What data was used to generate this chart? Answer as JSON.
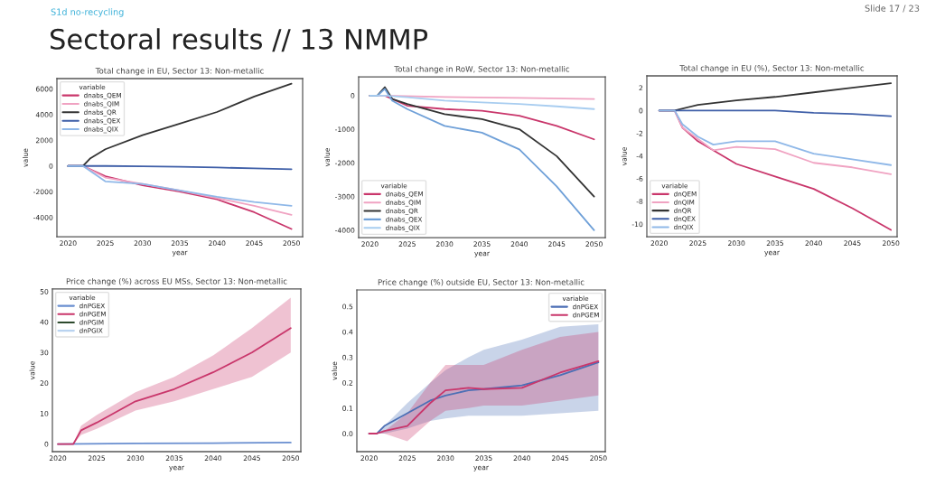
{
  "chart_data": [
    {
      "type": "line",
      "title": "Total change in EU, Sector 13: Non-metallic",
      "xlabel": "year",
      "ylabel": "value",
      "legend_title": "variable",
      "legend": "top left",
      "grid": false,
      "annotations": [
        "S1d no-recycling",
        "Sectoral results // 13 NMMP",
        "Slide 17 / 23"
      ],
      "xlim": [
        2018.5,
        2051.5
      ],
      "xticks": [
        2020,
        2025,
        2030,
        2035,
        2040,
        2045,
        2050
      ],
      "ylim": [
        -5500,
        6800
      ],
      "yticks": [
        -4000,
        -2000,
        0,
        2000,
        4000,
        6000
      ],
      "series": [
        {
          "name": "dnabs_QEM",
          "color": "#c9366b",
          "x": [
            2020,
            2022,
            2025,
            2030,
            2035,
            2040,
            2045,
            2050
          ],
          "values": [
            0,
            0,
            -800,
            -1500,
            -2000,
            -2600,
            -3600,
            -4900
          ]
        },
        {
          "name": "dnabs_QIM",
          "color": "#f0a3c2",
          "x": [
            2020,
            2022,
            2025,
            2030,
            2035,
            2040,
            2045,
            2050
          ],
          "values": [
            0,
            0,
            -900,
            -1400,
            -1900,
            -2500,
            -3100,
            -3800
          ]
        },
        {
          "name": "dnabs_QR",
          "color": "#333333",
          "x": [
            2020,
            2022,
            2023,
            2025,
            2030,
            2035,
            2040,
            2045,
            2050
          ],
          "values": [
            0,
            0,
            600,
            1300,
            2400,
            3300,
            4200,
            5400,
            6400
          ]
        },
        {
          "name": "dnabs_QEX",
          "color": "#3f5fa8",
          "x": [
            2020,
            2025,
            2030,
            2035,
            2040,
            2045,
            2050
          ],
          "values": [
            0,
            0,
            -20,
            -60,
            -120,
            -180,
            -250
          ]
        },
        {
          "name": "dnabs_QIX",
          "color": "#8fb8e8",
          "x": [
            2020,
            2022,
            2025,
            2030,
            2035,
            2040,
            2045,
            2050
          ],
          "values": [
            0,
            0,
            -1200,
            -1400,
            -1900,
            -2400,
            -2800,
            -3100
          ]
        }
      ]
    },
    {
      "type": "line",
      "title": "Total change in RoW, Sector 13: Non-metallic",
      "xlabel": "year",
      "ylabel": "value",
      "legend_title": "variable",
      "legend": "bottom left",
      "grid": false,
      "xlim": [
        2018.5,
        2051.5
      ],
      "xticks": [
        2020,
        2025,
        2030,
        2035,
        2040,
        2045,
        2050
      ],
      "ylim": [
        -4220,
        560
      ],
      "yticks": [
        -4000,
        -3000,
        -2000,
        -1000,
        0
      ],
      "series": [
        {
          "name": "dnabs_QEM",
          "color": "#c9366b",
          "x": [
            2020,
            2022,
            2025,
            2030,
            2035,
            2040,
            2045,
            2050
          ],
          "values": [
            0,
            0,
            -300,
            -400,
            -450,
            -600,
            -900,
            -1300
          ]
        },
        {
          "name": "dnabs_QIM",
          "color": "#f0a3c2",
          "x": [
            2020,
            2022,
            2030,
            2040,
            2050
          ],
          "values": [
            0,
            0,
            -40,
            -70,
            -100
          ]
        },
        {
          "name": "dnabs_QR",
          "color": "#333333",
          "x": [
            2020,
            2021,
            2022,
            2023,
            2025,
            2030,
            2035,
            2040,
            2045,
            2050
          ],
          "values": [
            0,
            0,
            250,
            -100,
            -250,
            -550,
            -700,
            -1000,
            -1800,
            -3000
          ]
        },
        {
          "name": "dnabs_QEX",
          "color": "#6fa0d8",
          "x": [
            2020,
            2021,
            2022,
            2023,
            2025,
            2030,
            2035,
            2040,
            2045,
            2050
          ],
          "values": [
            0,
            0,
            200,
            -150,
            -400,
            -900,
            -1100,
            -1600,
            -2700,
            -4000
          ]
        },
        {
          "name": "dnabs_QIX",
          "color": "#a8cdf0",
          "x": [
            2020,
            2022,
            2025,
            2030,
            2035,
            2040,
            2045,
            2050
          ],
          "values": [
            0,
            0,
            -50,
            -150,
            -200,
            -250,
            -320,
            -400
          ]
        }
      ]
    },
    {
      "type": "line",
      "title": "Total change in EU (%), Sector 13: Non-metallic",
      "xlabel": "year",
      "ylabel": "value",
      "legend_title": "variable",
      "legend": "bottom left",
      "grid": false,
      "xlim": [
        2018.4,
        2050.8
      ],
      "xticks": [
        2020,
        2025,
        2030,
        2035,
        2040,
        2045,
        2050
      ],
      "ylim": [
        -11.1,
        3.05
      ],
      "yticks": [
        -10,
        -8,
        -6,
        -4,
        -2,
        0,
        2
      ],
      "series": [
        {
          "name": "dnQEM",
          "color": "#c9366b",
          "x": [
            2020,
            2022,
            2023,
            2025,
            2030,
            2035,
            2040,
            2045,
            2050
          ],
          "values": [
            0,
            0,
            -1.5,
            -2.7,
            -4.7,
            -5.8,
            -6.9,
            -8.6,
            -10.5
          ]
        },
        {
          "name": "dnQIM",
          "color": "#f0a3c2",
          "x": [
            2020,
            2022,
            2023,
            2025,
            2027,
            2030,
            2035,
            2040,
            2045,
            2050
          ],
          "values": [
            0,
            0,
            -1.5,
            -2.5,
            -3.5,
            -3.2,
            -3.4,
            -4.6,
            -5.0,
            -5.6
          ]
        },
        {
          "name": "dnQR",
          "color": "#333333",
          "x": [
            2020,
            2022,
            2025,
            2030,
            2035,
            2040,
            2045,
            2050
          ],
          "values": [
            0,
            0,
            0.5,
            0.9,
            1.2,
            1.6,
            2.0,
            2.4
          ]
        },
        {
          "name": "dnQEX",
          "color": "#3f5fa8",
          "x": [
            2020,
            2035,
            2040,
            2045,
            2050
          ],
          "values": [
            0,
            0,
            -0.2,
            -0.3,
            -0.5
          ]
        },
        {
          "name": "dnQIX",
          "color": "#8fb8e8",
          "x": [
            2020,
            2022,
            2023,
            2025,
            2027,
            2030,
            2035,
            2040,
            2045,
            2050
          ],
          "values": [
            0,
            0,
            -1.2,
            -2.3,
            -3.0,
            -2.7,
            -2.7,
            -3.8,
            -4.3,
            -4.8
          ]
        }
      ]
    },
    {
      "type": "line",
      "title": "Price change (%) across EU MSs, Sector 13: Non-metallic",
      "xlabel": "year",
      "ylabel": "value",
      "legend_title": "variable",
      "legend": "top left",
      "grid": false,
      "xlim": [
        2019.3,
        2051.3
      ],
      "xticks": [
        2020,
        2025,
        2030,
        2035,
        2040,
        2045,
        2050
      ],
      "ylim": [
        -2.5,
        50.8
      ],
      "yticks": [
        0,
        10,
        20,
        30,
        40,
        50
      ],
      "series": [
        {
          "name": "dnPGEX",
          "color": "#6a8fd0",
          "x": [
            2020,
            2030,
            2040,
            2050
          ],
          "values": [
            0,
            0.2,
            0.3,
            0.5
          ]
        },
        {
          "name": "dnPGEM",
          "color": "#c9366b",
          "x": [
            2020,
            2022,
            2023,
            2025,
            2030,
            2035,
            2040,
            2045,
            2050
          ],
          "values": [
            0,
            0,
            4.5,
            7,
            14,
            18,
            23.5,
            30,
            38
          ],
          "lower": [
            0,
            0,
            3,
            5,
            11,
            14,
            18,
            22,
            30
          ],
          "upper": [
            0,
            0,
            6,
            9.5,
            17,
            22,
            29,
            38,
            48
          ]
        },
        {
          "name": "dnPGIM",
          "color": "#2d4a2d"
        },
        {
          "name": "dnPGIX",
          "color": "#b9d3f0"
        }
      ]
    },
    {
      "type": "line",
      "title": "Price change (%) outside EU, Sector 13: Non-metallic",
      "xlabel": "year",
      "ylabel": "value",
      "legend_title": "variable",
      "legend": "top right",
      "grid": false,
      "xlim": [
        2018.4,
        2050.9
      ],
      "xticks": [
        2020,
        2025,
        2030,
        2035,
        2040,
        2045,
        2050
      ],
      "ylim": [
        -0.071,
        0.565
      ],
      "yticks": [
        {
          "value": 0.0,
          "label": "0.0"
        },
        0.1,
        0.2,
        0.3,
        0.4,
        0.5
      ],
      "series": [
        {
          "name": "dnPGEX",
          "color": "#4c6fb5",
          "x": [
            2020,
            2021,
            2022,
            2025,
            2028,
            2030,
            2033,
            2035,
            2040,
            2045,
            2050
          ],
          "values": [
            0,
            0,
            0.03,
            0.08,
            0.13,
            0.15,
            0.17,
            0.175,
            0.19,
            0.23,
            0.28
          ],
          "lower": [
            0,
            0,
            0,
            0.02,
            0.05,
            0.06,
            0.07,
            0.07,
            0.07,
            0.08,
            0.09
          ],
          "upper": [
            0,
            0,
            0.03,
            0.12,
            0.2,
            0.25,
            0.3,
            0.33,
            0.37,
            0.42,
            0.43
          ]
        },
        {
          "name": "dnPGEM",
          "color": "#c9366b",
          "x": [
            2020,
            2021,
            2022,
            2025,
            2028,
            2030,
            2033,
            2035,
            2040,
            2045,
            2050
          ],
          "values": [
            0,
            0,
            0.01,
            0.03,
            0.12,
            0.17,
            0.18,
            0.175,
            0.18,
            0.24,
            0.285
          ],
          "lower": [
            0,
            0,
            0,
            -0.03,
            0.05,
            0.09,
            0.1,
            0.11,
            0.11,
            0.13,
            0.15
          ],
          "upper": [
            0,
            0,
            0.01,
            0.08,
            0.2,
            0.27,
            0.27,
            0.27,
            0.33,
            0.38,
            0.4
          ]
        }
      ]
    }
  ]
}
